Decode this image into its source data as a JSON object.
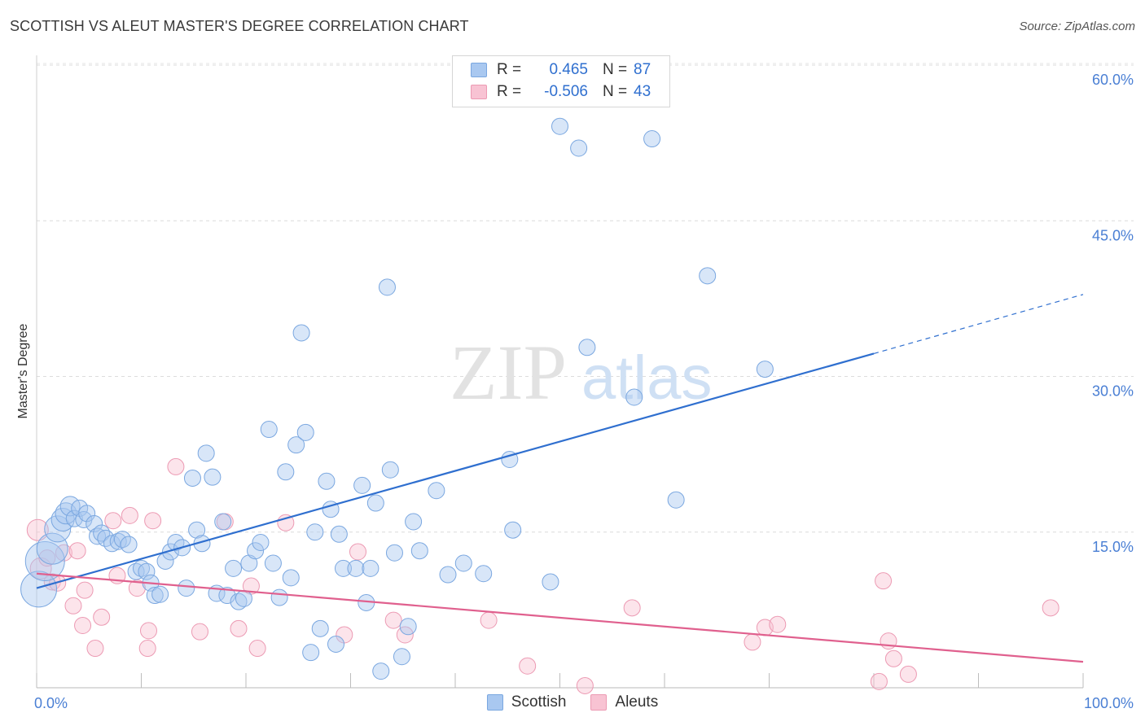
{
  "header": {
    "title": "SCOTTISH VS ALEUT MASTER'S DEGREE CORRELATION CHART",
    "source": "Source: ZipAtlas.com"
  },
  "watermark": {
    "zip": "ZIP",
    "atlas": "atlas"
  },
  "legend": {
    "rows": [
      {
        "r_label": "R =",
        "r_value": "0.465",
        "n_label": "N =",
        "n_value": "87",
        "color": "#a9c8f0",
        "border": "#7aa7e0"
      },
      {
        "r_label": "R =",
        "r_value": "-0.506",
        "n_label": "N =",
        "n_value": "43",
        "color": "#f8c3d3",
        "border": "#ec9ab3"
      }
    ]
  },
  "bottom_legend": {
    "items": [
      "Scottish",
      "Aleuts"
    ]
  },
  "colors": {
    "scottish_fill": "rgba(169,200,240,0.45)",
    "scottish_stroke": "#7aa7e0",
    "scottish_line": "#2f6fcf",
    "aleut_fill": "rgba(248,195,211,0.45)",
    "aleut_stroke": "#ec9ab3",
    "aleut_line": "#e0608e",
    "axis_text": "#4a7fd4"
  },
  "chart_data": {
    "type": "scatter",
    "title": "SCOTTISH VS ALEUT MASTER'S DEGREE CORRELATION CHART",
    "xlabel": "",
    "ylabel": "Master's Degree",
    "xlim": [
      0,
      100
    ],
    "ylim": [
      0,
      60
    ],
    "x_tick_labels": [
      "0.0%",
      "100.0%"
    ],
    "y_ticks": [
      15,
      30,
      45,
      60
    ],
    "y_tick_labels": [
      "15.0%",
      "30.0%",
      "45.0%",
      "60.0%"
    ],
    "grid": "horizontal dashed",
    "legend_position": "top-center",
    "series": [
      {
        "name": "Scottish",
        "r": 0.465,
        "n": 87,
        "trend": {
          "x0": 0,
          "y0": 9.6,
          "x1": 80,
          "y1": 32.2,
          "dashed_x1": 100,
          "dashed_y1": 37.9
        },
        "points": [
          [
            0.2,
            9.5,
            2.2
          ],
          [
            0.8,
            12.2,
            2.4
          ],
          [
            1.5,
            13.4,
            1.9
          ],
          [
            2.0,
            15.3,
            1.6
          ],
          [
            2.5,
            16.2,
            1.4
          ],
          [
            2.8,
            16.8,
            1.3
          ],
          [
            3.2,
            17.5,
            1.2
          ],
          [
            3.6,
            16.3,
            1.0
          ],
          [
            4.1,
            17.3,
            1.0
          ],
          [
            4.5,
            16.2,
            1.0
          ],
          [
            4.8,
            16.8,
            1.0
          ],
          [
            5.5,
            15.8,
            1.0
          ],
          [
            5.8,
            14.6,
            1.0
          ],
          [
            6.2,
            14.9,
            1.0
          ],
          [
            6.6,
            14.4,
            1.0
          ],
          [
            7.2,
            13.9,
            1.0
          ],
          [
            7.8,
            14.1,
            1.0
          ],
          [
            8.2,
            14.3,
            1.0
          ],
          [
            8.8,
            13.8,
            1.0
          ],
          [
            9.5,
            11.2,
            1.0
          ],
          [
            10.0,
            11.5,
            1.0
          ],
          [
            10.5,
            11.2,
            1.0
          ],
          [
            10.9,
            10.1,
            1.0
          ],
          [
            11.3,
            8.9,
            1.0
          ],
          [
            11.8,
            9.0,
            1.0
          ],
          [
            12.3,
            12.2,
            1.0
          ],
          [
            12.8,
            13.1,
            1.0
          ],
          [
            13.3,
            14.0,
            1.0
          ],
          [
            13.9,
            13.5,
            1.0
          ],
          [
            14.3,
            9.6,
            1.0
          ],
          [
            14.9,
            20.2,
            1.0
          ],
          [
            15.3,
            15.2,
            1.0
          ],
          [
            15.8,
            13.9,
            1.0
          ],
          [
            16.2,
            22.6,
            1.0
          ],
          [
            16.8,
            20.3,
            1.0
          ],
          [
            17.2,
            9.1,
            1.0
          ],
          [
            17.8,
            16.0,
            1.0
          ],
          [
            18.2,
            8.9,
            1.0
          ],
          [
            18.8,
            11.5,
            1.0
          ],
          [
            19.3,
            8.3,
            1.0
          ],
          [
            19.8,
            8.6,
            1.0
          ],
          [
            20.3,
            12.0,
            1.0
          ],
          [
            20.9,
            13.2,
            1.0
          ],
          [
            21.4,
            14.0,
            1.0
          ],
          [
            22.2,
            24.9,
            1.0
          ],
          [
            22.6,
            12.0,
            1.0
          ],
          [
            23.2,
            8.7,
            1.0
          ],
          [
            23.8,
            20.8,
            1.0
          ],
          [
            24.3,
            10.6,
            1.0
          ],
          [
            24.8,
            23.4,
            1.0
          ],
          [
            25.3,
            34.2,
            1.0
          ],
          [
            25.7,
            24.6,
            1.0
          ],
          [
            26.2,
            3.4,
            1.0
          ],
          [
            26.6,
            15.0,
            1.0
          ],
          [
            27.1,
            5.7,
            1.0
          ],
          [
            27.7,
            19.9,
            1.0
          ],
          [
            28.1,
            17.2,
            1.0
          ],
          [
            28.6,
            4.2,
            1.0
          ],
          [
            28.9,
            14.8,
            1.0
          ],
          [
            29.3,
            11.5,
            1.0
          ],
          [
            30.5,
            11.5,
            1.0
          ],
          [
            31.1,
            19.5,
            1.0
          ],
          [
            31.5,
            8.2,
            1.0
          ],
          [
            31.9,
            11.5,
            1.0
          ],
          [
            32.4,
            17.8,
            1.0
          ],
          [
            32.9,
            1.6,
            1.0
          ],
          [
            33.5,
            38.6,
            1.0
          ],
          [
            33.8,
            21.0,
            1.0
          ],
          [
            34.2,
            13.0,
            1.0
          ],
          [
            34.9,
            3.0,
            1.0
          ],
          [
            35.5,
            5.9,
            1.0
          ],
          [
            36.0,
            16.0,
            1.0
          ],
          [
            36.6,
            13.2,
            1.0
          ],
          [
            38.2,
            19.0,
            1.0
          ],
          [
            39.3,
            10.9,
            1.0
          ],
          [
            40.8,
            12.0,
            1.0
          ],
          [
            42.7,
            11.0,
            1.0
          ],
          [
            45.2,
            22.0,
            1.0
          ],
          [
            45.5,
            15.2,
            1.0
          ],
          [
            49.1,
            10.2,
            1.0
          ],
          [
            50.0,
            54.1,
            1.0
          ],
          [
            51.8,
            52.0,
            1.0
          ],
          [
            52.6,
            32.8,
            1.0
          ],
          [
            57.1,
            28.0,
            1.0
          ],
          [
            58.8,
            52.9,
            1.0
          ],
          [
            61.1,
            18.1,
            1.0
          ],
          [
            64.1,
            39.7,
            1.0
          ],
          [
            69.6,
            30.7,
            1.0
          ]
        ]
      },
      {
        "name": "Aleuts",
        "r": -0.506,
        "n": 43,
        "trend": {
          "x0": 0,
          "y0": 11.0,
          "x1": 100,
          "y1": 2.5
        },
        "points": [
          [
            0.1,
            15.2,
            1.3
          ],
          [
            0.4,
            11.5,
            1.3
          ],
          [
            1.0,
            12.5,
            1.0
          ],
          [
            1.5,
            10.2,
            1.0
          ],
          [
            2.0,
            10.1,
            1.0
          ],
          [
            2.6,
            13.0,
            1.0
          ],
          [
            3.5,
            7.9,
            1.0
          ],
          [
            3.9,
            13.2,
            1.0
          ],
          [
            4.4,
            6.0,
            1.0
          ],
          [
            4.6,
            9.4,
            1.0
          ],
          [
            5.6,
            3.8,
            1.0
          ],
          [
            6.2,
            6.8,
            1.0
          ],
          [
            7.3,
            16.1,
            1.0
          ],
          [
            7.7,
            10.8,
            1.0
          ],
          [
            8.9,
            16.6,
            1.0
          ],
          [
            9.6,
            9.6,
            1.0
          ],
          [
            10.6,
            3.8,
            1.0
          ],
          [
            10.7,
            5.5,
            1.0
          ],
          [
            11.1,
            16.1,
            1.0
          ],
          [
            13.3,
            21.3,
            1.0
          ],
          [
            15.6,
            5.4,
            1.0
          ],
          [
            18.0,
            16.0,
            1.0
          ],
          [
            19.3,
            5.7,
            1.0
          ],
          [
            20.5,
            9.8,
            1.0
          ],
          [
            21.1,
            3.8,
            1.0
          ],
          [
            23.8,
            15.9,
            1.0
          ],
          [
            29.4,
            5.1,
            1.0
          ],
          [
            30.7,
            13.1,
            1.0
          ],
          [
            34.1,
            6.5,
            1.0
          ],
          [
            35.2,
            5.1,
            1.0
          ],
          [
            43.2,
            6.5,
            1.0
          ],
          [
            46.9,
            2.1,
            1.0
          ],
          [
            52.4,
            0.2,
            1.0
          ],
          [
            56.9,
            7.7,
            1.0
          ],
          [
            68.4,
            4.4,
            1.0
          ],
          [
            69.6,
            5.8,
            1.0
          ],
          [
            70.8,
            6.1,
            1.0
          ],
          [
            80.5,
            0.6,
            1.0
          ],
          [
            80.9,
            10.3,
            1.0
          ],
          [
            81.4,
            4.5,
            1.0
          ],
          [
            81.9,
            2.8,
            1.0
          ],
          [
            83.3,
            1.3,
            1.0
          ],
          [
            96.9,
            7.7,
            1.0
          ]
        ]
      }
    ]
  }
}
